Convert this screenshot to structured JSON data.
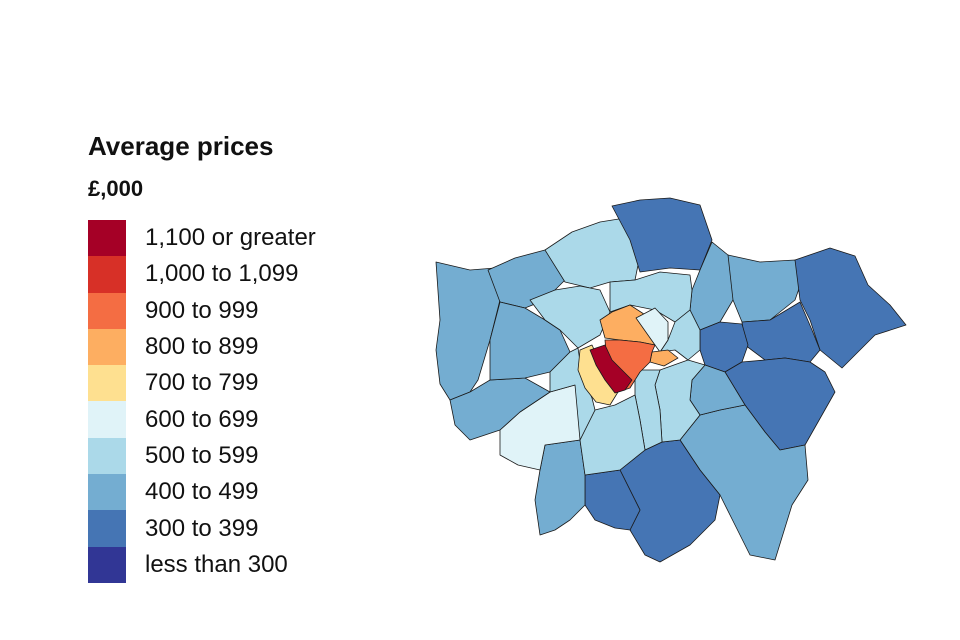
{
  "legend": {
    "title": "Average prices",
    "unit": "£,000",
    "items": [
      {
        "label": "1,100 or greater",
        "color": "#a50026"
      },
      {
        "label": "1,000 to 1,099",
        "color": "#d73027"
      },
      {
        "label": "900 to 999",
        "color": "#f46d43"
      },
      {
        "label": "800 to 899",
        "color": "#fdae61"
      },
      {
        "label": "700 to 799",
        "color": "#fee090"
      },
      {
        "label": "600 to 699",
        "color": "#e0f3f8"
      },
      {
        "label": "500 to 599",
        "color": "#abd9e9"
      },
      {
        "label": "400 to 499",
        "color": "#74add1"
      },
      {
        "label": "300 to 399",
        "color": "#4575b4"
      },
      {
        "label": "less than 300",
        "color": "#313695"
      }
    ]
  }
}
